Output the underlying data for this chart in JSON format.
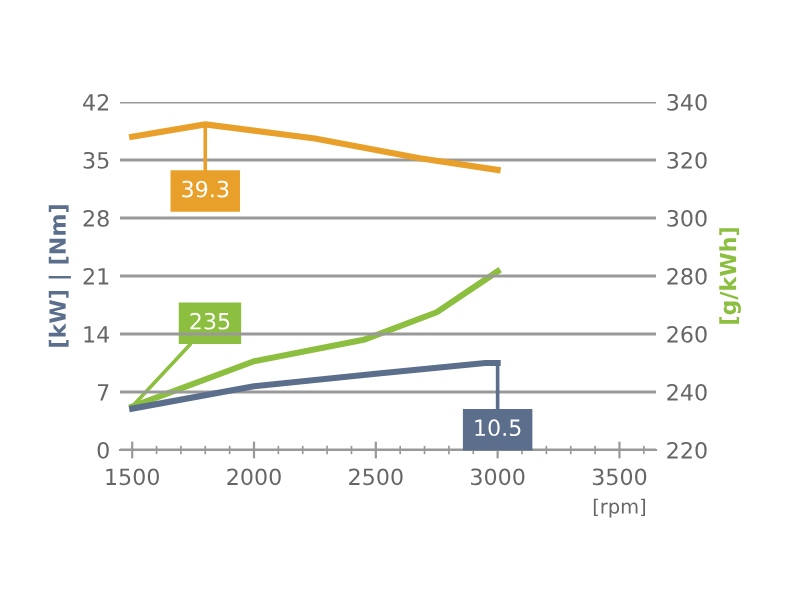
{
  "chart_data": {
    "type": "line",
    "xlabel": "[rpm]",
    "ylabel": "[kW] | [Nm]",
    "y2label": "[g/kWh]",
    "xlim": [
      1450,
      3650
    ],
    "xticks": [
      1500,
      2000,
      2500,
      3000,
      3500
    ],
    "ylim": [
      0,
      42
    ],
    "yticks": [
      0,
      7,
      14,
      21,
      28,
      35,
      42
    ],
    "y2lim": [
      220,
      340
    ],
    "y2ticks": [
      220,
      240,
      260,
      280,
      300,
      320,
      340
    ],
    "grid": "y",
    "legend": false,
    "marker": "none",
    "line_style": "solid",
    "series": [
      {
        "color": "#e8a02a",
        "x": [
          1500,
          1800,
          2250,
          2680,
          3000
        ],
        "values": [
          37.8,
          39.3,
          37.6,
          35.2,
          33.8
        ],
        "value_labels": [
          null,
          "39.3",
          null,
          null,
          null
        ]
      },
      {
        "color": "#8cbf3f",
        "axis": "y2",
        "x": [
          1500,
          2000,
          2450,
          2750,
          3000
        ],
        "values": [
          235,
          250.6,
          258,
          267.5,
          281.6
        ],
        "value_labels": [
          "235",
          null,
          null,
          null,
          null
        ]
      },
      {
        "color": "#5b6f8c",
        "x": [
          1500,
          2000,
          2500,
          2950,
          3000
        ],
        "values": [
          5.0,
          7.7,
          9.2,
          10.5,
          10.5
        ],
        "value_labels": [
          null,
          null,
          null,
          null,
          "10.5"
        ]
      }
    ]
  }
}
